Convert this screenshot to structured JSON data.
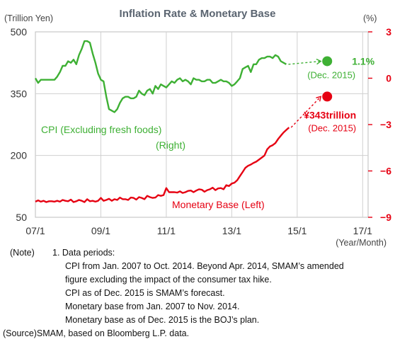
{
  "chart_data": {
    "type": "line",
    "title": "Inflation Rate & Monetary Base",
    "left_axis": {
      "label": "(Trillion Yen)",
      "min": 50,
      "max": 500,
      "ticks": [
        "500",
        "350",
        "200",
        "50"
      ],
      "tick_values": [
        500,
        350,
        200,
        50
      ]
    },
    "right_axis": {
      "label": "(%)",
      "min": -9,
      "max": 3,
      "ticks": [
        "3",
        "0",
        "−3",
        "−6",
        "−9"
      ],
      "tick_values": [
        3,
        0,
        -3,
        -6,
        -9
      ],
      "color": "#e60012"
    },
    "x_axis": {
      "label": "(Year/Month)",
      "ticks": [
        "07/1",
        "09/1",
        "11/1",
        "13/1",
        "15/1",
        "17/1"
      ],
      "tick_values": [
        0,
        24,
        48,
        72,
        96,
        120
      ],
      "range": [
        0,
        122
      ]
    },
    "grid": true,
    "series": [
      {
        "name": "CPI (Excluding fresh foods)",
        "axis": "right",
        "color": "#3eb034",
        "x": [
          0,
          1,
          2,
          3,
          4,
          5,
          6,
          7,
          8,
          9,
          10,
          11,
          12,
          13,
          14,
          15,
          16,
          17,
          18,
          19,
          20,
          21,
          22,
          23,
          24,
          25,
          26,
          27,
          28,
          29,
          30,
          31,
          32,
          33,
          34,
          35,
          36,
          37,
          38,
          39,
          40,
          41,
          42,
          43,
          44,
          45,
          46,
          47,
          48,
          49,
          50,
          51,
          52,
          53,
          54,
          55,
          56,
          57,
          58,
          59,
          60,
          61,
          62,
          63,
          64,
          65,
          66,
          67,
          68,
          69,
          70,
          71,
          72,
          73,
          74,
          75,
          76,
          77,
          78,
          79,
          80,
          81,
          82,
          83,
          84,
          85,
          86,
          87,
          88,
          89,
          90,
          91,
          92
        ],
        "y": [
          0.0,
          -0.3,
          -0.1,
          -0.1,
          -0.1,
          -0.1,
          -0.1,
          -0.1,
          0.1,
          0.4,
          0.8,
          0.8,
          1.1,
          1.0,
          1.2,
          0.9,
          1.5,
          1.9,
          2.4,
          2.4,
          2.3,
          1.6,
          1.0,
          0.3,
          -0.1,
          -0.2,
          -1.2,
          -2.0,
          -2.1,
          -2.2,
          -2.0,
          -1.6,
          -1.3,
          -1.2,
          -1.2,
          -1.3,
          -1.3,
          -1.2,
          -0.8,
          -1.0,
          -1.1,
          -0.8,
          -0.7,
          -1.0,
          -0.5,
          -0.7,
          -0.4,
          -0.5,
          -0.6,
          -0.4,
          -0.2,
          -0.3,
          -0.1,
          0.0,
          -0.2,
          -0.1,
          -0.2,
          -0.4,
          0.0,
          -0.1,
          -0.1,
          -0.2,
          -0.2,
          -0.1,
          -0.1,
          -0.3,
          -0.3,
          -0.2,
          -0.1,
          -0.2,
          -0.2,
          -0.3,
          -0.5,
          -0.4,
          -0.2,
          0.0,
          0.6,
          0.7,
          0.8,
          0.4,
          0.9,
          0.9,
          1.2,
          1.3,
          1.3,
          1.4,
          1.4,
          1.3,
          1.5,
          1.4,
          1.1,
          1.0,
          0.9
        ]
      },
      {
        "name": "Monetary Base (Left)",
        "axis": "left",
        "color": "#e60012",
        "x": [
          0,
          1,
          2,
          3,
          4,
          5,
          6,
          7,
          8,
          9,
          10,
          11,
          12,
          13,
          14,
          15,
          16,
          17,
          18,
          19,
          20,
          21,
          22,
          23,
          24,
          25,
          26,
          27,
          28,
          29,
          30,
          31,
          32,
          33,
          34,
          35,
          36,
          37,
          38,
          39,
          40,
          41,
          42,
          43,
          44,
          45,
          46,
          47,
          48,
          49,
          50,
          51,
          52,
          53,
          54,
          55,
          56,
          57,
          58,
          59,
          60,
          61,
          62,
          63,
          64,
          65,
          66,
          67,
          68,
          69,
          70,
          71,
          72,
          73,
          74,
          75,
          76,
          77,
          78,
          79,
          80,
          81,
          82,
          83,
          84,
          85,
          86,
          87,
          88,
          89,
          90,
          91,
          92,
          93
        ],
        "y": [
          88,
          91,
          88,
          90,
          87,
          89,
          89,
          88,
          90,
          88,
          92,
          90,
          89,
          93,
          87,
          89,
          92,
          90,
          87,
          94,
          89,
          90,
          88,
          90,
          97,
          90,
          92,
          95,
          90,
          94,
          92,
          98,
          94,
          94,
          92,
          98,
          97,
          93,
          99,
          97,
          94,
          102,
          99,
          97,
          98,
          104,
          102,
          104,
          121,
          111,
          111,
          111,
          110,
          113,
          109,
          111,
          114,
          115,
          111,
          115,
          118,
          117,
          112,
          116,
          118,
          122,
          116,
          120,
          121,
          118,
          128,
          126,
          132,
          134,
          140,
          150,
          160,
          170,
          175,
          178,
          182,
          185,
          190,
          195,
          200,
          215,
          222,
          225,
          230,
          240,
          248,
          256,
          262,
          268
        ]
      }
    ],
    "forecast_points": [
      {
        "series": "CPI (Excluding fresh foods)",
        "axis": "right",
        "x": 107,
        "y": 1.1,
        "value_label": "1.1%",
        "date_label": "(Dec. 2015)",
        "color": "#3eb034"
      },
      {
        "series": "Monetary Base (Left)",
        "axis": "left",
        "x": 107,
        "y": 343,
        "value_label": "¥343trillion",
        "date_label": "(Dec. 2015)",
        "color": "#e60012"
      }
    ],
    "annotations": [
      {
        "text": "CPI (Excluding fresh foods)",
        "color": "#3eb034"
      },
      {
        "text": "(Right)",
        "color": "#3eb034"
      },
      {
        "text": "Monetary Base (Left)",
        "color": "#e60012"
      }
    ]
  },
  "notes": {
    "note_label": "(Note)",
    "lines": [
      "1. Data periods:",
      "CPI from Jan. 2007 to Oct. 2014. Beyond Apr. 2014, SMAM’s amended",
      "figure excluding the impact of the consumer tax hike.",
      "CPI as of Dec. 2015 is SMAM’s forecast.",
      "Monetary base from Jan. 2007 to Nov. 2014.",
      "Monetary base as of Dec. 2015 is the BOJ’s plan."
    ],
    "source": "(Source)SMAM, based on Bloomberg L.P. data."
  }
}
